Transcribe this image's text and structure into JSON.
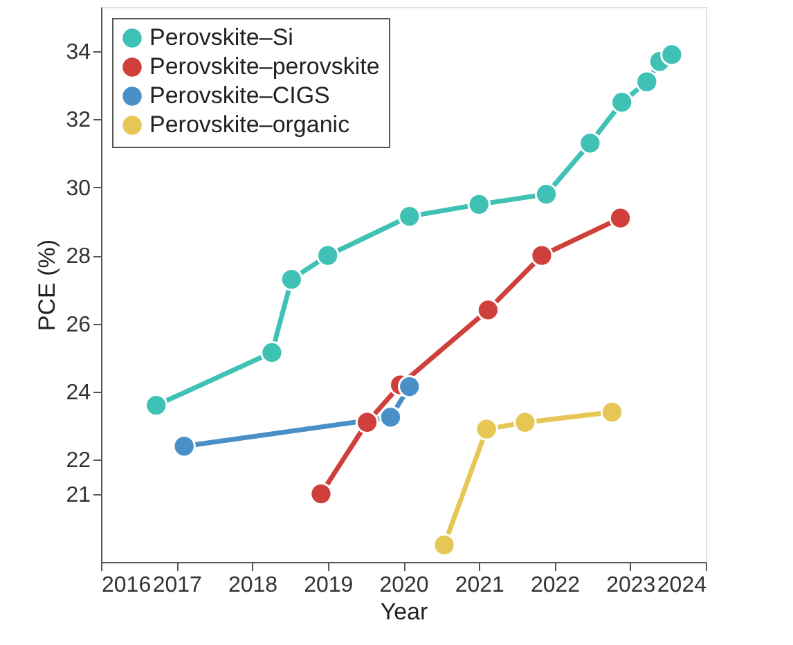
{
  "chart_data": {
    "type": "line",
    "xlabel": "Year",
    "ylabel": "PCE (%)",
    "xlim": [
      2016,
      2024
    ],
    "ylim": [
      19,
      35.3
    ],
    "xticks": [
      2016,
      2017,
      2018,
      2019,
      2020,
      2021,
      2022,
      2023,
      2024
    ],
    "yticks": [
      21,
      22,
      24,
      26,
      28,
      30,
      32,
      34
    ],
    "grid": false,
    "legend": "top left",
    "marker": "circle",
    "line_style": "solid",
    "series": [
      {
        "name": "Perovskite–Si",
        "color": "#3fc1b5",
        "x": [
          2016.73,
          2018.26,
          2018.52,
          2019.0,
          2020.08,
          2021.0,
          2021.89,
          2022.47,
          2022.89,
          2023.22,
          2023.39,
          2023.55
        ],
        "values": [
          23.6,
          25.15,
          27.3,
          28.0,
          29.15,
          29.5,
          29.8,
          31.3,
          32.5,
          33.1,
          33.7,
          33.9
        ]
      },
      {
        "name": "Perovskite–perovskite",
        "color": "#cf3f3b",
        "x": [
          2018.91,
          2019.52,
          2019.96,
          2021.12,
          2021.83,
          2022.87
        ],
        "values": [
          21.0,
          23.1,
          24.2,
          26.4,
          28.0,
          29.1
        ]
      },
      {
        "name": "Perovskite–CIGS",
        "color": "#4a90c8",
        "x": [
          2017.1,
          2019.83,
          2020.08
        ],
        "values": [
          22.4,
          23.25,
          24.15
        ]
      },
      {
        "name": "Perovskite–organic",
        "color": "#e6c654",
        "x": [
          2020.54,
          2021.1,
          2021.61,
          2022.76
        ],
        "values": [
          19.5,
          22.9,
          23.1,
          23.4
        ]
      }
    ]
  }
}
